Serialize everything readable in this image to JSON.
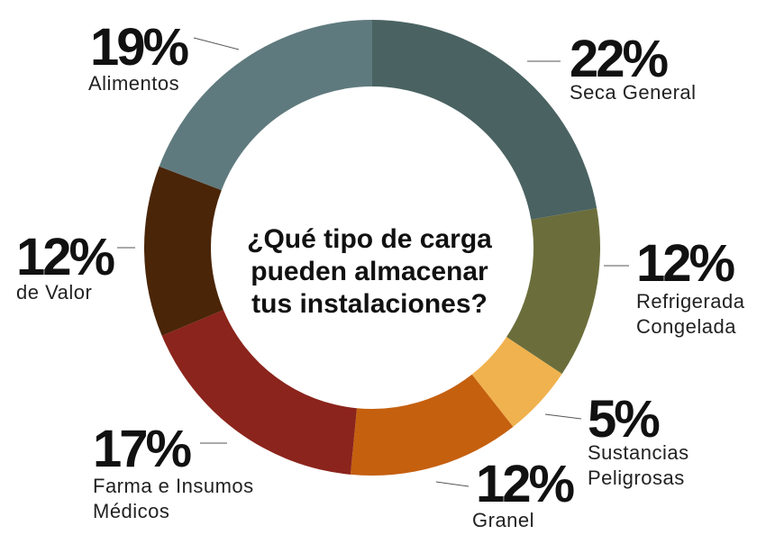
{
  "chart_data": {
    "type": "donut",
    "title": [
      "¿Qué tipo de carga",
      "pueden almacenar",
      "tus instalaciones?"
    ],
    "categories": [
      [
        "Seca General"
      ],
      [
        "Refrigerada",
        "Congelada"
      ],
      [
        "Sustancias",
        "Peligrosas"
      ],
      [
        "Granel"
      ],
      [
        "Farma e Insumos",
        "Médicos"
      ],
      [
        "de Valor"
      ],
      [
        "Alimentos"
      ]
    ],
    "values": [
      22,
      12,
      5,
      12,
      17,
      12,
      19
    ],
    "value_labels": [
      "22%",
      "12%",
      "5%",
      "12%",
      "17%",
      "12%",
      "19%"
    ],
    "colors": [
      "#4a6262",
      "#6b6e3b",
      "#f0b24e",
      "#c5600f",
      "#8b241c",
      "#4a2508",
      "#5f7a7e"
    ]
  }
}
